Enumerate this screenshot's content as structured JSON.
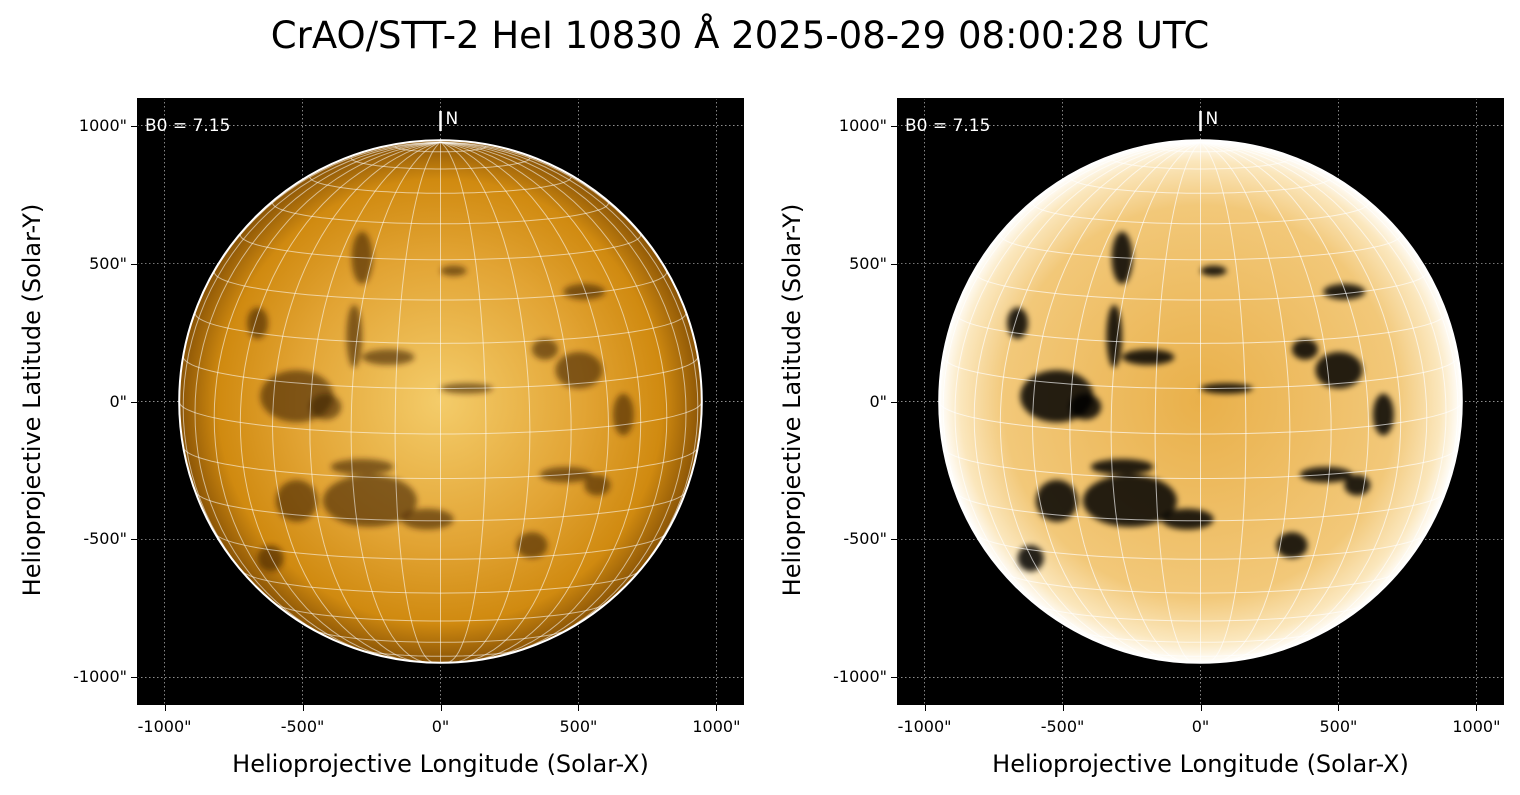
{
  "title": "CrAO/STT-2 HeI 10830 Å 2025-08-29 08:00:28 UTC",
  "panels": [
    {
      "variant": "normal",
      "b0_label": "B0 = 7.15",
      "north_label": "N",
      "xlabel": "Helioprojective Longitude (Solar-X)",
      "ylabel": "Helioprojective Latitude (Solar-Y)"
    },
    {
      "variant": "enhanced",
      "b0_label": "B0 = 7.15",
      "north_label": "N",
      "xlabel": "Helioprojective Longitude (Solar-X)",
      "ylabel": "Helioprojective Latitude (Solar-Y)"
    }
  ],
  "axis": {
    "x_ticks": [
      "-1000\"",
      "-500\"",
      "0\"",
      "500\"",
      "1000\""
    ],
    "y_ticks": [
      "1000\"",
      "500\"",
      "0\"",
      "-500\"",
      "-1000\""
    ],
    "x_tick_values": [
      -1000,
      -500,
      0,
      500,
      1000
    ],
    "y_tick_values": [
      1000,
      500,
      0,
      -500,
      -1000
    ],
    "range_arcsec": [
      -1100,
      1100
    ]
  },
  "solar_radius_arcsec": 947,
  "colors": {
    "disk": "#d08a10",
    "disk_bright": "#f4cc6a",
    "limb": "#ffffff",
    "background": "#000000"
  }
}
